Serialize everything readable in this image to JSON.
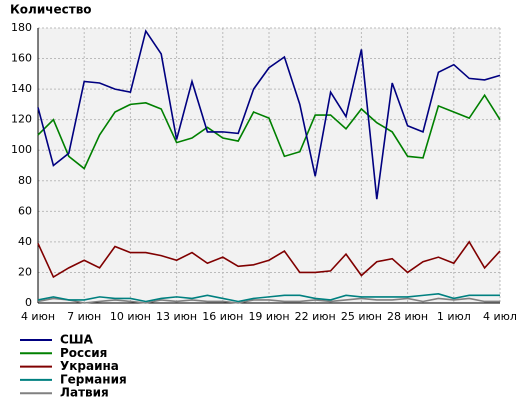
{
  "chart_data": {
    "type": "line",
    "title": "Количество",
    "categories": [
      "4 июн",
      null,
      null,
      "7 июн",
      null,
      null,
      "10 июн",
      null,
      null,
      "13 июн",
      null,
      null,
      "16 июн",
      null,
      null,
      "19 июн",
      null,
      null,
      "22 июн",
      null,
      null,
      "25 июн",
      null,
      null,
      "28 июн",
      null,
      null,
      "1 июл",
      null,
      null,
      "4 июл"
    ],
    "series": [
      {
        "name": "США",
        "color": "#000080",
        "values": [
          128,
          90,
          98,
          145,
          144,
          140,
          138,
          178,
          163,
          107,
          145,
          112,
          112,
          111,
          140,
          154,
          161,
          130,
          83,
          138,
          122,
          166,
          68,
          144,
          116,
          112,
          151,
          156,
          147,
          146,
          149
        ]
      },
      {
        "name": "Россия",
        "color": "#008000",
        "values": [
          110,
          120,
          96,
          88,
          110,
          125,
          130,
          131,
          127,
          105,
          108,
          115,
          108,
          106,
          125,
          121,
          96,
          99,
          123,
          123,
          114,
          127,
          118,
          112,
          96,
          95,
          129,
          125,
          121,
          136,
          120
        ]
      },
      {
        "name": "Украина",
        "color": "#800000",
        "values": [
          39,
          17,
          23,
          28,
          23,
          37,
          33,
          33,
          31,
          28,
          33,
          26,
          30,
          24,
          25,
          28,
          34,
          20,
          20,
          21,
          32,
          18,
          27,
          29,
          20,
          27,
          30,
          26,
          40,
          23,
          34
        ]
      },
      {
        "name": "Германия",
        "color": "#008080",
        "values": [
          2,
          4,
          2,
          2,
          4,
          3,
          3,
          1,
          3,
          4,
          3,
          5,
          3,
          1,
          3,
          4,
          5,
          5,
          3,
          2,
          5,
          4,
          4,
          4,
          4,
          5,
          6,
          3,
          5,
          5,
          5
        ]
      },
      {
        "name": "Латвия",
        "color": "#808080",
        "values": [
          1,
          3,
          2,
          0,
          1,
          2,
          1,
          0,
          2,
          1,
          2,
          1,
          1,
          0,
          2,
          2,
          1,
          1,
          2,
          1,
          2,
          3,
          2,
          2,
          3,
          1,
          3,
          2,
          3,
          1,
          1
        ]
      }
    ],
    "ylim": [
      0,
      180
    ],
    "yticks": [
      0,
      20,
      40,
      60,
      80,
      100,
      120,
      140,
      160,
      180
    ],
    "grid": true
  }
}
